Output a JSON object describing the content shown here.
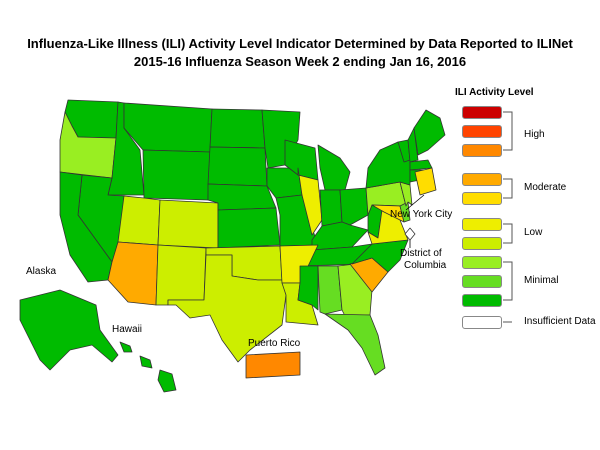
{
  "header": {
    "title": "Influenza-Like Illness (ILI) Activity Level Indicator Determined by Data Reported to ILINet",
    "subtitle": "2015-16  Influenza Season Week  2 ending Jan 16, 2016"
  },
  "map_labels": {
    "alaska": "Alaska",
    "hawaii": "Hawaii",
    "puerto_rico": "Puerto Rico",
    "nyc": "New York City",
    "dc_line1": "District of",
    "dc_line2": "Columbia"
  },
  "legend": {
    "title": "ILI Activity Level",
    "levels": [
      {
        "level": 10,
        "color": "#cc0000"
      },
      {
        "level": 9,
        "color": "#ff4400"
      },
      {
        "level": 8,
        "color": "#ff8800"
      },
      {
        "level": 7,
        "color": "#ffaa00"
      },
      {
        "level": 6,
        "color": "#ffdd00"
      },
      {
        "level": 5,
        "color": "#eeee00"
      },
      {
        "level": 4,
        "color": "#ccee00"
      },
      {
        "level": 3,
        "color": "#99ee22"
      },
      {
        "level": 2,
        "color": "#66dd22"
      },
      {
        "level": 1,
        "color": "#00bb00"
      },
      {
        "level": 0,
        "color": "#ffffff"
      }
    ],
    "groups": [
      {
        "label": "High",
        "levels": [
          10,
          9,
          8
        ]
      },
      {
        "label": "Moderate",
        "levels": [
          7,
          6
        ]
      },
      {
        "label": "Low",
        "levels": [
          5,
          4
        ]
      },
      {
        "label": "Minimal",
        "levels": [
          3,
          2,
          1
        ]
      },
      {
        "label": "Insufficient Data",
        "levels": [
          0
        ]
      }
    ]
  },
  "regions": {
    "minimal_dark": "#00bb00",
    "minimal_mid": "#66dd22",
    "minimal_light": "#99ee22",
    "low_light": "#ccee00",
    "low": "#eeee00",
    "moderate_dark": "#ffaa00",
    "high_light": "#ff8800",
    "assignments": {
      "Washington": 1,
      "Oregon": 3,
      "Idaho": 1,
      "Montana": 1,
      "Wyoming": 1,
      "Nevada": 1,
      "California": 1,
      "Utah": 4,
      "Colorado": 4,
      "Arizona": 7,
      "New Mexico": 4,
      "North Dakota": 1,
      "South Dakota": 1,
      "Nebraska": 1,
      "Kansas": 1,
      "Oklahoma": 4,
      "Texas": 4,
      "Minnesota": 1,
      "Iowa": 1,
      "Missouri": 1,
      "Arkansas": 5,
      "Louisiana": 4,
      "Wisconsin": 1,
      "Illinois": 5,
      "Mississippi": 1,
      "Michigan": 1,
      "Indiana": 1,
      "Kentucky": 1,
      "Tennessee": 1,
      "Alabama": 2,
      "Georgia": 3,
      "Florida": 2,
      "Ohio": 1,
      "West Virginia": 1,
      "Virginia": 5,
      "North Carolina": 1,
      "South Carolina": 7,
      "Pennsylvania": 3,
      "New York": 1,
      "Maryland": 6,
      "New Jersey": 3,
      "Delaware": 2,
      "Vermont": 1,
      "New Hampshire": 1,
      "Maine": 1,
      "Massachusetts": 1,
      "Connecticut": 1,
      "Rhode Island": 1,
      "Alaska": 1,
      "Hawaii": 1,
      "Puerto Rico": 8,
      "New York City": 6,
      "District of Columbia": 0
    }
  }
}
